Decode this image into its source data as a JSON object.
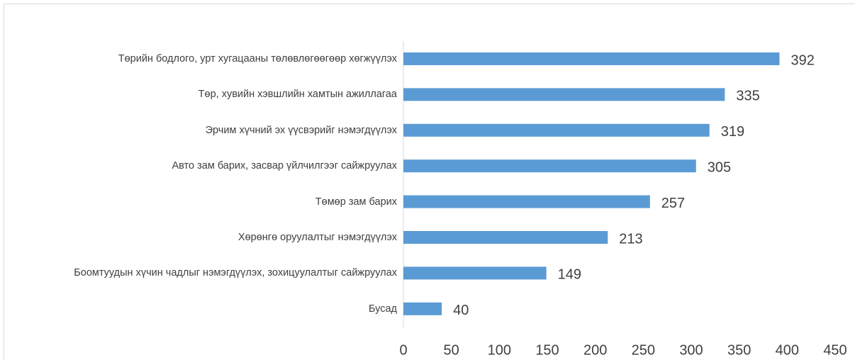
{
  "chart_data": {
    "type": "bar",
    "orientation": "horizontal",
    "categories": [
      "Төрийн бодлого, урт хугацааны төлөвлөгөөгөөр хөгжүүлэх",
      "Төр, хувийн хэвшлийн хамтын ажиллагаа",
      "Эрчим хүчний эх үүсвэрийг нэмэгдүүлэх",
      "Авто зам барих, засвар үйлчилгээг сайжруулах",
      "Төмөр зам барих",
      "Хөрөнгө оруулалтыг нэмэгдүүлэх",
      "Боомтуудын хүчин чадлыг нэмэгдүүлэх, зохицуулалтыг сайжруулах",
      "Бусад"
    ],
    "values": [
      392,
      335,
      319,
      305,
      257,
      213,
      149,
      40
    ],
    "color": "#5b9bd5",
    "xlim": [
      0,
      450
    ],
    "xticks": [
      0,
      50,
      100,
      150,
      200,
      250,
      300,
      350,
      400,
      450
    ]
  }
}
